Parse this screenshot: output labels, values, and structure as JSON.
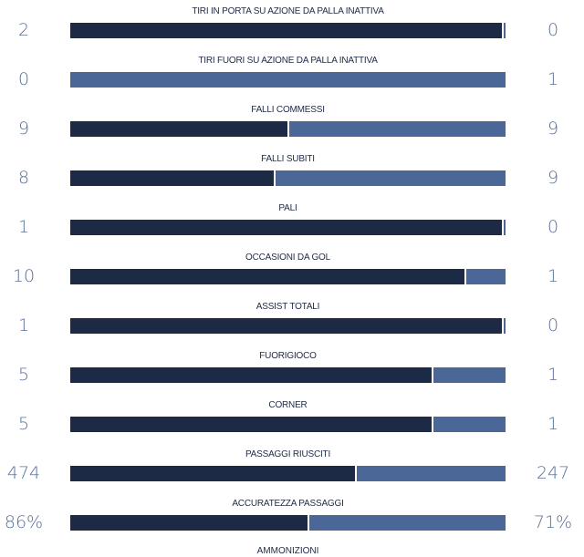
{
  "colors": {
    "home_bar": "#1c2a46",
    "away_bar": "#4a6797",
    "value_text": "#5b7096",
    "label_text": "#1f2a44"
  },
  "stats": [
    {
      "label": "TIRI IN PORTA SU AZIONE DA PALLA INATTIVA",
      "home": "2",
      "away": "0",
      "home_share": 0.995
    },
    {
      "label": "TIRI FUORI SU AZIONE DA PALLA INATTIVA",
      "home": "0",
      "away": "1",
      "home_share": 0.0
    },
    {
      "label": "FALLI COMMESSI",
      "home": "9",
      "away": "9",
      "home_share": 0.5
    },
    {
      "label": "FALLI SUBITI",
      "home": "8",
      "away": "9",
      "home_share": 0.47
    },
    {
      "label": "PALI",
      "home": "1",
      "away": "0",
      "home_share": 0.995
    },
    {
      "label": "OCCASIONI DA GOL",
      "home": "10",
      "away": "1",
      "home_share": 0.909
    },
    {
      "label": "ASSIST TOTALI",
      "home": "1",
      "away": "0",
      "home_share": 0.995
    },
    {
      "label": "FUORIGIOCO",
      "home": "5",
      "away": "1",
      "home_share": 0.833
    },
    {
      "label": "CORNER",
      "home": "5",
      "away": "1",
      "home_share": 0.833
    },
    {
      "label": "PASSAGGI RIUSCITI",
      "home": "474",
      "away": "247",
      "home_share": 0.657
    },
    {
      "label": "ACCURATEZZA PASSAGGI",
      "home": "86%",
      "away": "71%",
      "home_share": 0.548
    }
  ],
  "next_label": "AMMONIZIONI"
}
